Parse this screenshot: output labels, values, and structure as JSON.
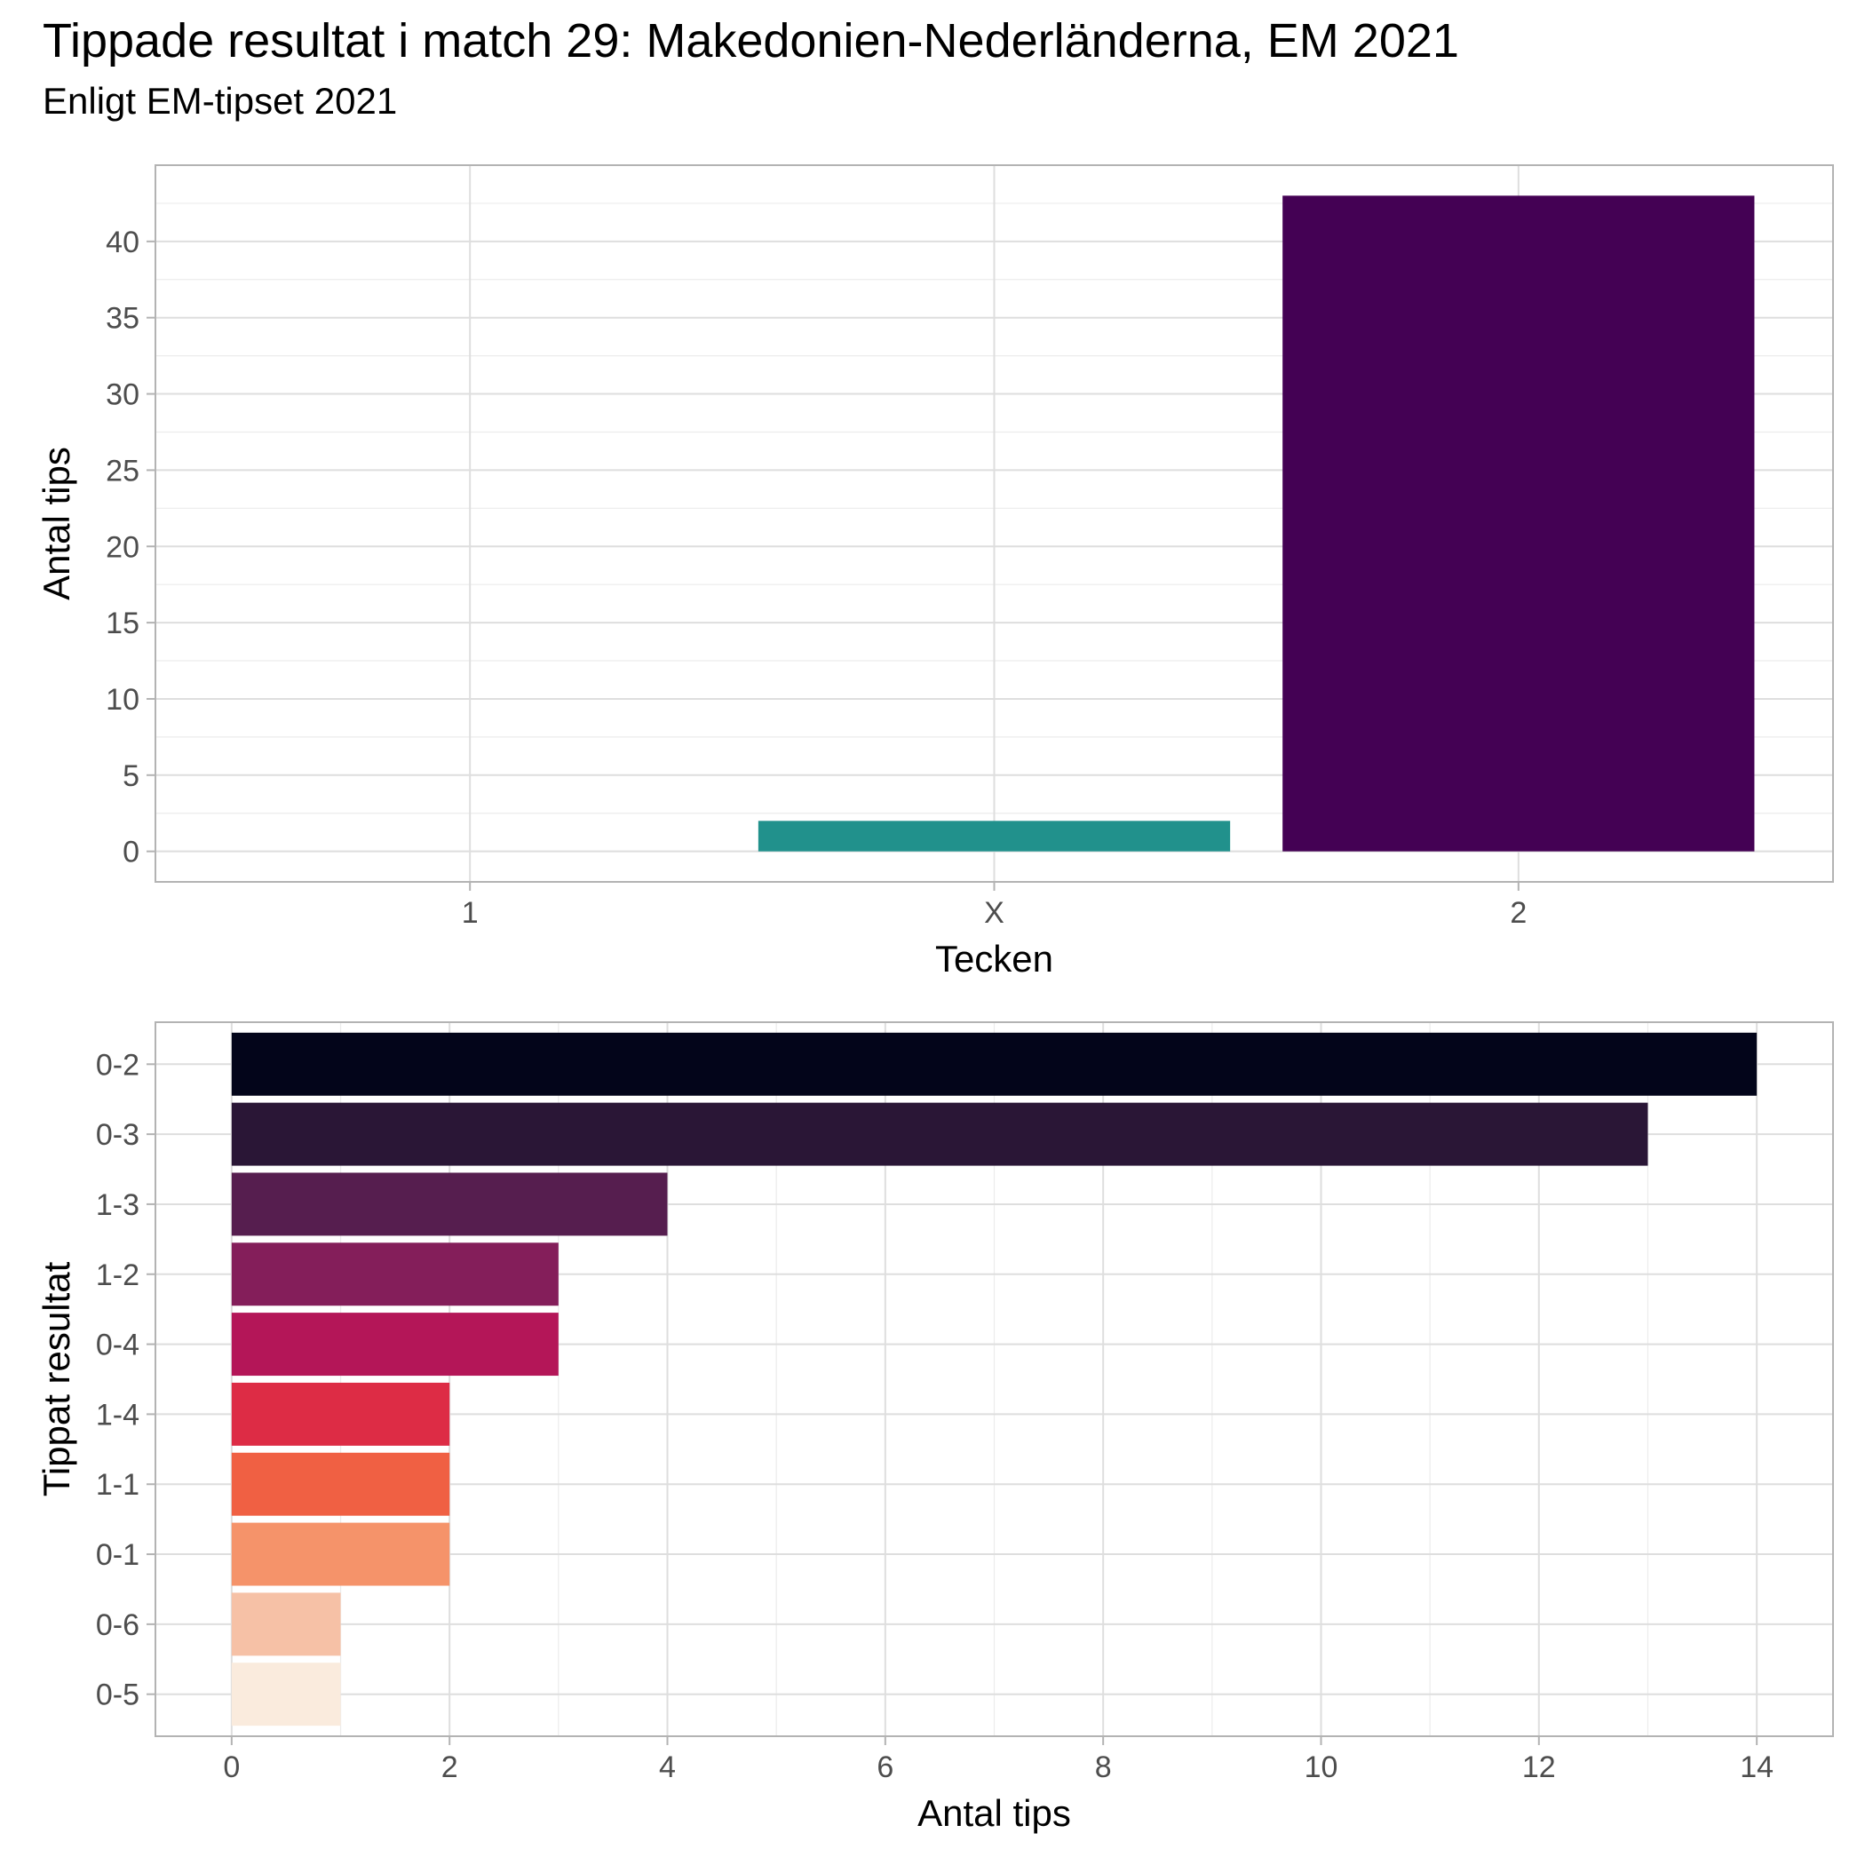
{
  "title": "Tippade resultat i match 29: Makedonien-Nederländerna, EM 2021",
  "subtitle": "Enligt EM-tipset 2021",
  "chart_data": [
    {
      "type": "bar",
      "orientation": "vertical",
      "categories": [
        "1",
        "X",
        "2"
      ],
      "values": [
        0,
        2,
        43
      ],
      "colors": [
        "#fde725",
        "#21918c",
        "#440154"
      ],
      "xlabel": "Tecken",
      "ylabel": "Antal tips",
      "ylim": [
        -2,
        45
      ],
      "yticks": [
        0,
        5,
        10,
        15,
        20,
        25,
        30,
        35,
        40
      ],
      "grid": true
    },
    {
      "type": "bar",
      "orientation": "horizontal",
      "categories": [
        "0-2",
        "0-3",
        "1-3",
        "1-2",
        "0-4",
        "1-4",
        "1-1",
        "0-1",
        "0-6",
        "0-5"
      ],
      "values": [
        14,
        13,
        4,
        3,
        3,
        2,
        2,
        2,
        1,
        1
      ],
      "colors": [
        "#03051a",
        "#2a1636",
        "#561e4f",
        "#841e5a",
        "#b41658",
        "#dd2c45",
        "#f06043",
        "#f5936a",
        "#f6c1a6",
        "#faebdd"
      ],
      "xlabel": "Antal tips",
      "ylabel": "Tippat resultat",
      "xlim": [
        -0.7,
        14.7
      ],
      "xticks": [
        0,
        2,
        4,
        6,
        8,
        10,
        12,
        14
      ],
      "grid": true
    }
  ]
}
